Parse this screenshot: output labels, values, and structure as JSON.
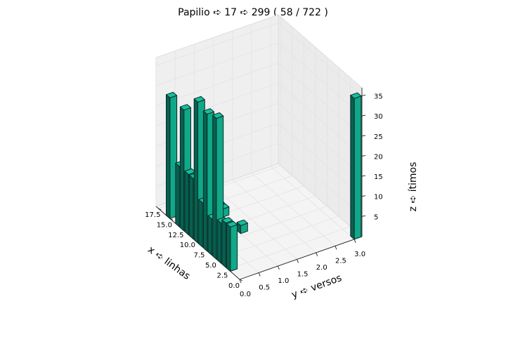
{
  "chart_data": {
    "type": "bar3d",
    "title": "Papilio ➪ 17 ➪ 299 ( 58 / 722 )",
    "xlabel": "x ➪ linhas",
    "ylabel": "y ➪ versos",
    "zlabel": "z ➪ ítimos",
    "x_ticks": [
      "0.0",
      "2.5",
      "5.0",
      "7.5",
      "10.0",
      "12.5",
      "15.0",
      "17.5"
    ],
    "y_ticks": [
      "0.0",
      "0.5",
      "1.0",
      "1.5",
      "2.0",
      "2.5",
      "3.0"
    ],
    "z_ticks": [
      "5",
      "10",
      "15",
      "20",
      "25",
      "30",
      "35"
    ],
    "xlim": [
      0,
      18
    ],
    "ylim": [
      0,
      3.2
    ],
    "zlim": [
      0,
      37
    ],
    "grid": true,
    "colors": {
      "top": "#14bf9c",
      "side": "#0fa888",
      "front": "#066050",
      "edge": "#0d2b26"
    },
    "bars": [
      {
        "x": 2,
        "y": 0,
        "z": 11
      },
      {
        "x": 3,
        "y": 0,
        "z": 11
      },
      {
        "x": 4,
        "y": 0,
        "z": 10
      },
      {
        "x": 5,
        "y": 0,
        "z": 35
      },
      {
        "x": 6,
        "y": 0,
        "z": 9
      },
      {
        "x": 7,
        "y": 0,
        "z": 34
      },
      {
        "x": 8,
        "y": 0,
        "z": 11
      },
      {
        "x": 9,
        "y": 0,
        "z": 35
      },
      {
        "x": 10,
        "y": 0,
        "z": 15
      },
      {
        "x": 11,
        "y": 0,
        "z": 15
      },
      {
        "x": 12,
        "y": 0,
        "z": 30
      },
      {
        "x": 13,
        "y": 0,
        "z": 15
      },
      {
        "x": 15,
        "y": 0,
        "z": 30
      },
      {
        "x": 0,
        "y": 3,
        "z": 35
      },
      {
        "x": 8,
        "y": 1,
        "z": 2
      },
      {
        "x": 12,
        "y": 1,
        "z": 2
      },
      {
        "x": 13,
        "y": 1,
        "z": 2
      },
      {
        "x": 14,
        "y": 1,
        "z": 2
      },
      {
        "x": 16,
        "y": 1,
        "z": 2
      }
    ]
  }
}
